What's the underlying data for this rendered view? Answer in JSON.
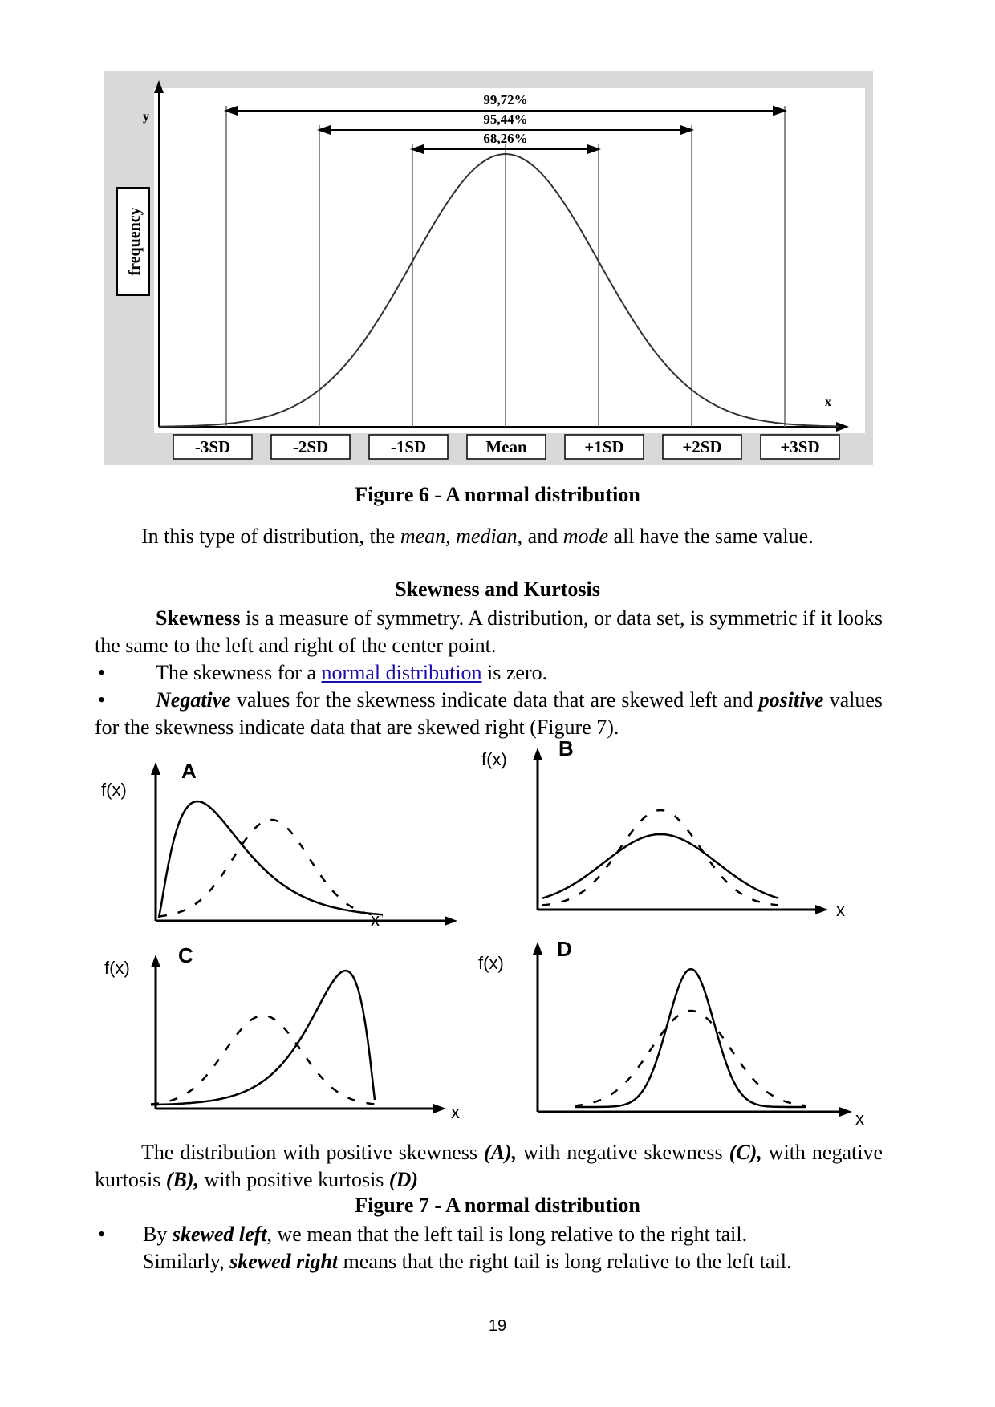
{
  "figure6": {
    "y_label": "y",
    "x_label": "x",
    "frequency_label": "frequency",
    "pct_997": "99,72%",
    "pct_954": "95,44%",
    "pct_683": "68,26%",
    "sd_labels": [
      "-3SD",
      "-2SD",
      "-1SD",
      "Mean",
      "+1SD",
      "+2SD",
      "+3SD"
    ],
    "caption": "Figure 6 - A normal distribution"
  },
  "text": {
    "p1_a": "In this type of distribution, the ",
    "p1_mean": "mean, median",
    "p1_b": ", and ",
    "p1_mode": "mode",
    "p1_c": " all have the same value.",
    "heading": "Skewness and Kurtosis",
    "p2_bold": "Skewness",
    "p2_rest": " is a measure of symmetry. A distribution, or data set, is symmetric if it looks the same to the left and right of the center point.",
    "b1_a": "The skewness for a ",
    "b1_link": "normal distribution",
    "b1_b": " is zero.",
    "b2_neg": "Negative",
    "b2_a": " values for the skewness indicate data that are skewed left and ",
    "b2_pos": "positive",
    "b2_b": " values for the skewness indicate data that are skewed right (Figure 7).",
    "bullet_char": "•"
  },
  "figure7": {
    "fx_label": "f(x)",
    "x_label": "x",
    "panels": [
      "A",
      "B",
      "C",
      "D"
    ],
    "desc_a": "The distribution with positive skewness ",
    "desc_A": "(A),",
    "desc_b": " with negative skewness ",
    "desc_C": "(C),",
    "desc_c": " with negative kurtosis ",
    "desc_B": "(B),",
    "desc_d": " with positive kurtosis ",
    "desc_D": "(D)",
    "caption": "Figure 7 - A normal distribution"
  },
  "bottom": {
    "l1_a": "By ",
    "l1_bold": "skewed left",
    "l1_b": ", we mean that the left tail is long relative to the right tail.",
    "l2_a": "Similarly, ",
    "l2_bold": "skewed right",
    "l2_b": " means that the right tail is long relative to the left tail."
  },
  "page_number": "19"
}
